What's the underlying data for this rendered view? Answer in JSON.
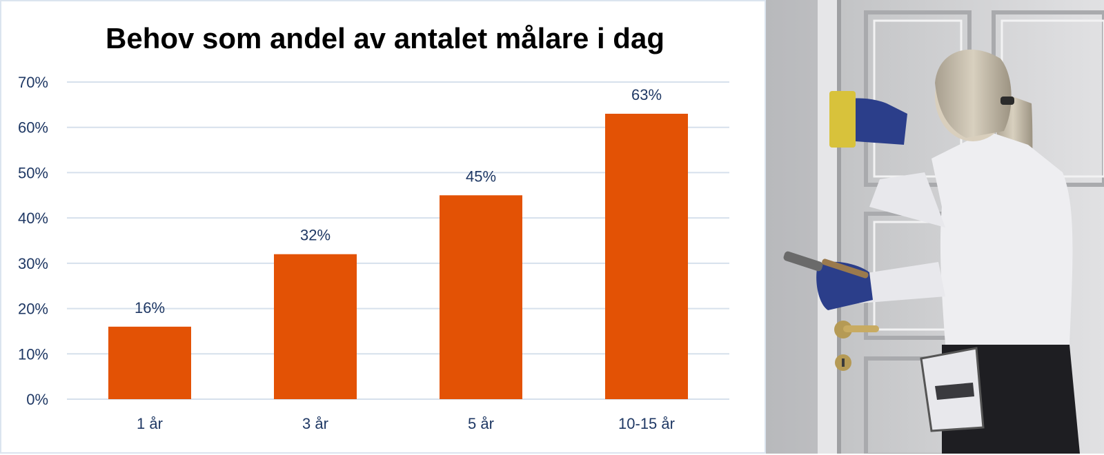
{
  "chart_data": {
    "type": "bar",
    "title": "Behov som andel av antalet målare i dag",
    "xlabel": "",
    "ylabel": "",
    "categories": [
      "1 år",
      "3 år",
      "5 år",
      "10-15 år"
    ],
    "values": [
      16,
      32,
      45,
      63
    ],
    "data_labels": [
      "16%",
      "32%",
      "45%",
      "63%"
    ],
    "ylim": [
      0,
      70
    ],
    "yticks": [
      0,
      10,
      20,
      30,
      40,
      50,
      60,
      70
    ],
    "ytick_labels": [
      "0%",
      "10%",
      "20%",
      "30%",
      "40%",
      "50%",
      "60%",
      "70%"
    ],
    "grid": true,
    "legend": "none",
    "colors": {
      "bar": "#e35205",
      "grid": "#d6e0ec",
      "text": "#1f3864",
      "title": "#000000"
    }
  },
  "photo": {
    "subject": "painter-sanding-door"
  }
}
